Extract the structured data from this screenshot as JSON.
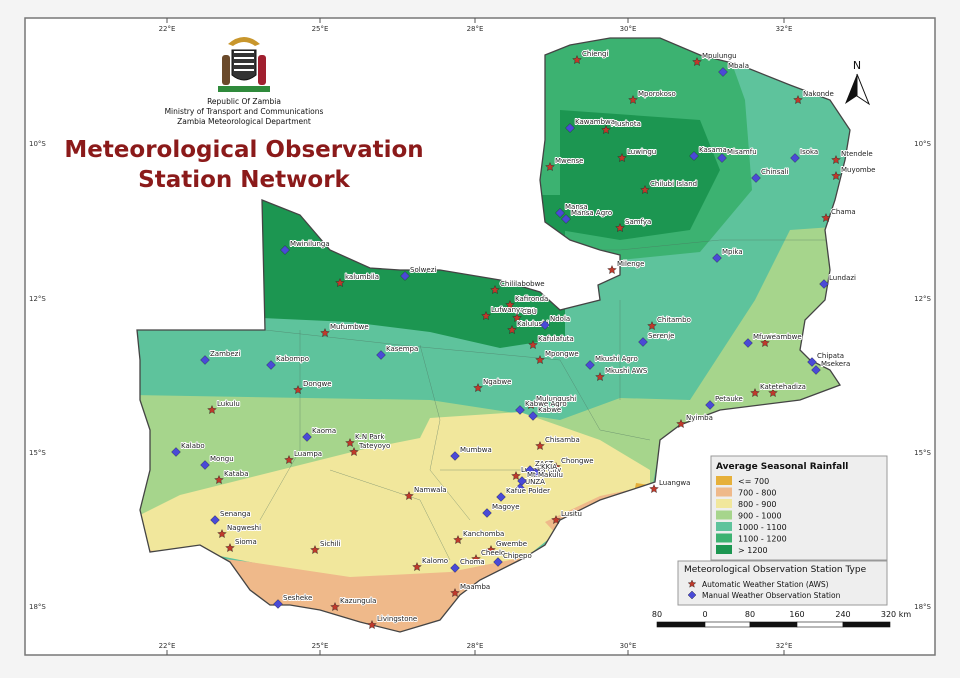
{
  "header": {
    "country": "Republic Of Zambia",
    "ministry": "Ministry of Transport and Communications",
    "department": "Zambia Meteorological Department"
  },
  "title": [
    "Meteorological Observation",
    "Station Network"
  ],
  "north": "N",
  "graticule": {
    "longitudes": [
      "22°E",
      "25°E",
      "28°E",
      "30°E",
      "32°E"
    ],
    "latitudes": [
      "10°S",
      "12°S",
      "15°S",
      "18°S"
    ]
  },
  "rainfall_legend": {
    "title": "Average Seasonal Rainfall",
    "classes": [
      {
        "label": "<= 700",
        "color": "#e6b03a"
      },
      {
        "label": "700 - 800",
        "color": "#efb98a"
      },
      {
        "label": "800 - 900",
        "color": "#f1e79c"
      },
      {
        "label": "900 - 1000",
        "color": "#a6d58c"
      },
      {
        "label": "1000 - 1100",
        "color": "#5ec39c"
      },
      {
        "label": "1100 - 1200",
        "color": "#3cb271"
      },
      {
        "label": "> 1200",
        "color": "#1c9651"
      }
    ]
  },
  "station_legend": {
    "title": "Meteorological Observation Station Type",
    "types": [
      {
        "name": "Automatic Weather Station (AWS)",
        "color": "#c0392b",
        "stations": [
          "Chiengi",
          "Mpulungu",
          "Nakonde",
          "Mporokoso",
          "Mushota",
          "Luwingu",
          "Mwense",
          "Chilubi Island",
          "Samfya",
          "Milenge",
          "Ntendele",
          "Muyombe",
          "Chama",
          "kalumbila",
          "Chililabobwe",
          "Kafironda",
          "Lufwanyama",
          "CBU",
          "Kalulushi",
          "Kafulafuta",
          "Mpongwe",
          "Mufumbwe",
          "Dongwe",
          "Chitambo",
          "Mambwe",
          "Mkushi AWS",
          "Ngabwe",
          "Mulungushi",
          "K.N Park",
          "Tateyoyo",
          "Luampa",
          "Chisamba",
          "Chongwe",
          "Kataba",
          "Lusaka City",
          "Namwala",
          "Luangwa",
          "Lusitu",
          "Sichili",
          "Nagweshi",
          "Sioma",
          "Kanchomba",
          "Gwembe",
          "Cheelo",
          "Kalomo",
          "Maamba",
          "Kazungula",
          "Livingstone",
          "Nyimba",
          "Chadiza",
          "Katete",
          "Lukulu"
        ]
      },
      {
        "name": "Manual Weather Observation Station",
        "color": "#4a4ad6",
        "stations": [
          "Mbala",
          "Kawambwa",
          "Kasama",
          "Misamfu",
          "Isoka",
          "Chinsali",
          "Mansa",
          "Mansa Agro",
          "Mpika",
          "Lundazi",
          "Mwinilunga",
          "Solwezi",
          "Ndola",
          "Zambezi",
          "Kabompo",
          "Kasempa",
          "Serenje",
          "Mkushi Agro",
          "Mfuwe",
          "Chipata",
          "Msekera",
          "Petauke",
          "Kabwe Agro",
          "Kabwe",
          "Kaoma",
          "Mumbwa",
          "Kalabo",
          "Mongu",
          "ZAST",
          "KKIA",
          "UNZA",
          "Mt.Makulu",
          "Kafue Polder",
          "Magoye",
          "Senanga",
          "Chipepo",
          "Choma",
          "Sesheke"
        ]
      }
    ]
  },
  "scale_bar": {
    "labels": [
      "80",
      "0",
      "80",
      "160",
      "240",
      "320 km"
    ]
  }
}
